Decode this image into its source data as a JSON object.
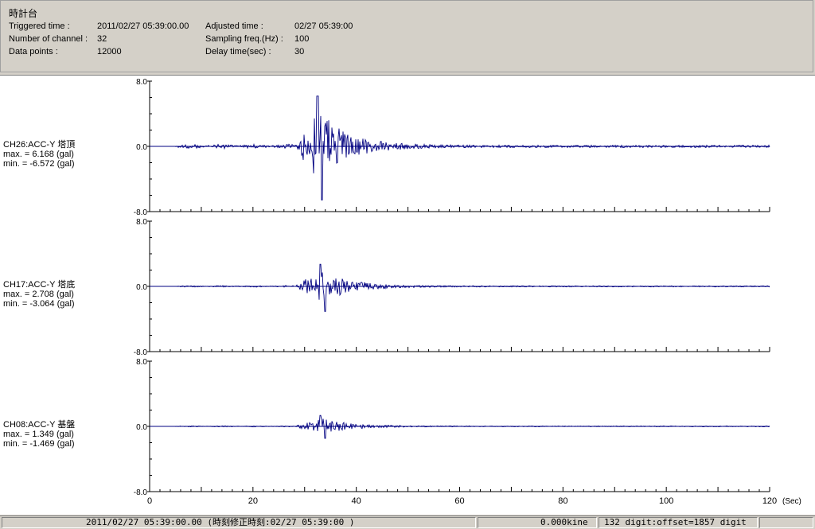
{
  "header": {
    "station": "時計台",
    "triggered_label": "Triggered time :",
    "triggered_value": "2011/02/27 05:39:00.00",
    "channels_label": "Number of channel :",
    "channels_value": "32",
    "datapoints_label": "Data points :",
    "datapoints_value": "12000",
    "adjusted_label": "Adjusted time :",
    "adjusted_value": "02/27 05:39:00",
    "sampling_label": "Sampling freq.(Hz) :",
    "sampling_value": "100",
    "delay_label": "Delay time(sec) :",
    "delay_value": "30"
  },
  "chart_data": {
    "type": "line",
    "x_range": [
      0,
      120
    ],
    "x_ticks": [
      "0",
      "20",
      "40",
      "60",
      "80",
      "100",
      "120"
    ],
    "x_unit": "(Sec)",
    "y_range": [
      -8.0,
      8.0
    ],
    "y_ticks": [
      "8.0",
      "0.0",
      "-8.0"
    ],
    "line_color": "#000080",
    "channels": [
      {
        "name": "CH26:ACC-Y 塔頂",
        "max_label": "max. = 6.168 (gal)",
        "min_label": "min. = -6.572 (gal)",
        "max": 6.168,
        "min": -6.572,
        "peak_time": 32.5,
        "amp": 4.6,
        "noise": 0.28,
        "tail": 0.14
      },
      {
        "name": "CH17:ACC-Y 塔底",
        "max_label": "max. = 2.708 (gal)",
        "min_label": "min. = -3.064 (gal)",
        "max": 2.708,
        "min": -3.064,
        "peak_time": 33.0,
        "amp": 2.0,
        "noise": 0.1,
        "tail": 0.07
      },
      {
        "name": "CH08:ACC-Y 基盤",
        "max_label": "max. = 1.349 (gal)",
        "min_label": "min. = -1.469 (gal)",
        "max": 1.349,
        "min": -1.469,
        "peak_time": 33.0,
        "amp": 1.0,
        "noise": 0.07,
        "tail": 0.05
      }
    ]
  },
  "status": {
    "time": "2011/02/27 05:39:00.00  (時刻修正時刻:02/27 05:39:00  )",
    "velocity": "0.000kine",
    "digit": "132 digit:offset=1857 digit",
    "empty": ""
  }
}
